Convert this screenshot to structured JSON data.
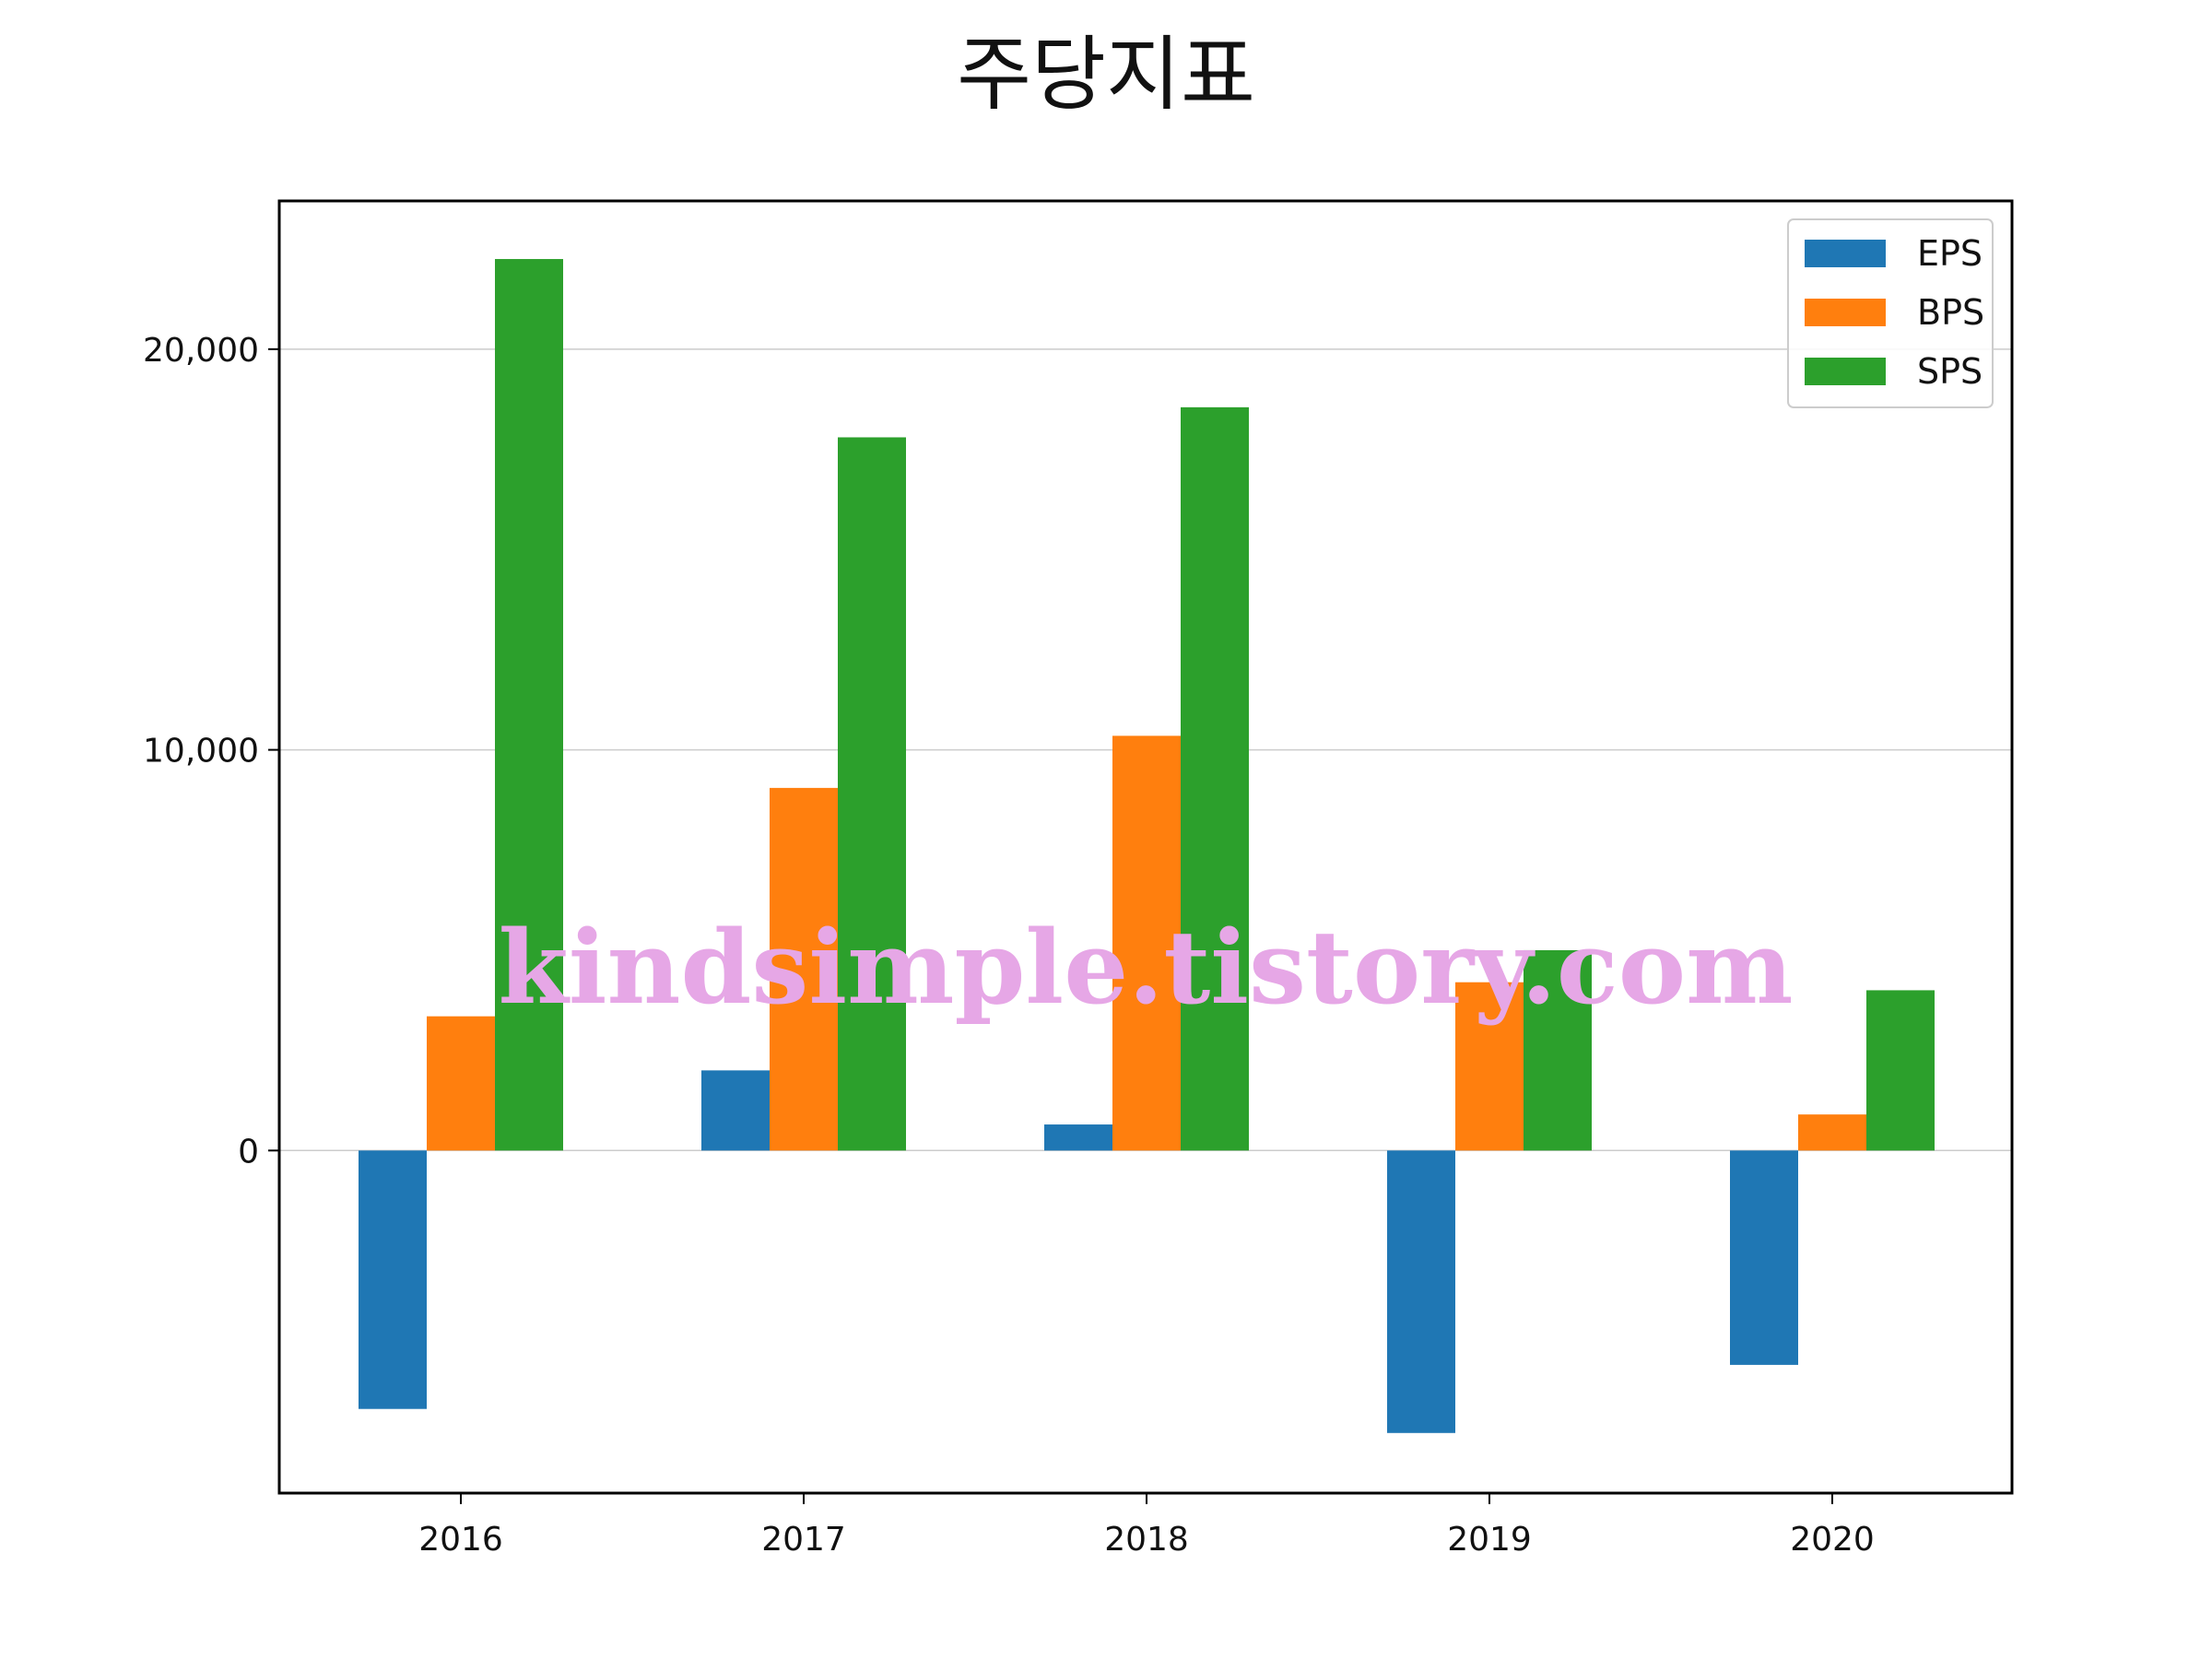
{
  "chart_data": {
    "type": "bar",
    "title": "주당지표",
    "categories": [
      "2016",
      "2017",
      "2018",
      "2019",
      "2020"
    ],
    "series": [
      {
        "name": "EPS",
        "values": [
          -6450,
          2000,
          650,
          -7050,
          -5350
        ],
        "color": "#1f77b4"
      },
      {
        "name": "BPS",
        "values": [
          3350,
          9050,
          10350,
          4200,
          900
        ],
        "color": "#ff7f0e"
      },
      {
        "name": "SPS",
        "values": [
          22250,
          17800,
          18550,
          5000,
          4000
        ],
        "color": "#2ca02c"
      }
    ],
    "yticks": [
      0,
      10000,
      20000
    ],
    "ytick_labels": [
      "0",
      "10,000",
      "20,000"
    ],
    "ylim": [
      -8550,
      23700
    ],
    "grid": "y",
    "legend_position": "top-right",
    "xlabel": "",
    "ylabel": ""
  },
  "watermark": "kindsimple.tistory.com"
}
